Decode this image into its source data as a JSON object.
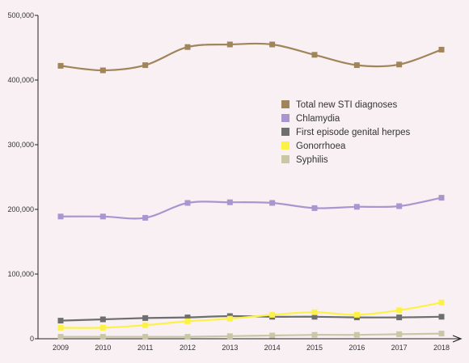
{
  "chart_data": {
    "type": "line",
    "title": "",
    "xlabel": "",
    "ylabel": "",
    "x": [
      "2009",
      "2010",
      "2011",
      "2012",
      "2013",
      "2014",
      "2015",
      "2016",
      "2017",
      "2018"
    ],
    "ylim": [
      0,
      500000
    ],
    "yticks": [
      0,
      100000,
      200000,
      300000,
      400000,
      500000
    ],
    "ytick_labels": [
      "0",
      "100,000",
      "200,000",
      "300,000",
      "400,000",
      "500,000"
    ],
    "grid": false,
    "legend_position": "right",
    "series": [
      {
        "name": "Total new STI diagnoses",
        "color": "#a0855a",
        "values": [
          422000,
          415000,
          423000,
          451000,
          455000,
          455000,
          439000,
          423000,
          424000,
          447000
        ]
      },
      {
        "name": "Chlamydia",
        "color": "#a996cf",
        "values": [
          189000,
          189000,
          187000,
          210000,
          211000,
          210000,
          202000,
          204000,
          205000,
          218000
        ]
      },
      {
        "name": "First episode genital herpes",
        "color": "#6e6e6e",
        "values": [
          28000,
          30000,
          32000,
          33000,
          35000,
          34000,
          34000,
          33000,
          33000,
          34000
        ]
      },
      {
        "name": "Gonorrhoea",
        "color": "#fcf246",
        "values": [
          17000,
          17000,
          21000,
          27000,
          31000,
          37000,
          41000,
          37000,
          44000,
          56000
        ]
      },
      {
        "name": "Syphilis",
        "color": "#c8c7a6",
        "values": [
          3000,
          3000,
          3000,
          3000,
          4000,
          5000,
          6000,
          6000,
          7000,
          8000
        ]
      }
    ]
  }
}
